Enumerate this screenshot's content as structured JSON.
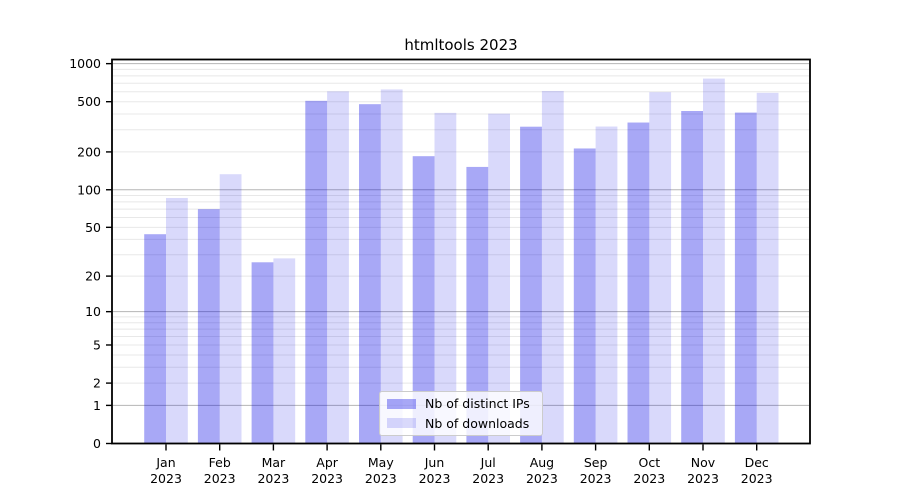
{
  "chart_data": {
    "type": "bar",
    "title": "htmltools 2023",
    "categories": [
      "Jan 2023",
      "Feb 2023",
      "Mar 2023",
      "Apr 2023",
      "May 2023",
      "Jun 2023",
      "Jul 2023",
      "Aug 2023",
      "Sep 2023",
      "Oct 2023",
      "Nov 2023",
      "Dec 2023"
    ],
    "series": [
      {
        "name": "Nb of distinct IPs",
        "color": "#0000e6",
        "fill_opacity": 0.34,
        "values": [
          44,
          70,
          26,
          508,
          478,
          185,
          152,
          317,
          213,
          342,
          422,
          410
        ]
      },
      {
        "name": "Nb of downloads",
        "color": "#0000e6",
        "fill_opacity": 0.15,
        "values": [
          86,
          133,
          28,
          604,
          625,
          408,
          402,
          608,
          318,
          595,
          762,
          588
        ]
      }
    ],
    "y_axis": {
      "scale": "log1p",
      "tick_values": [
        0,
        1,
        2,
        5,
        10,
        20,
        50,
        100,
        200,
        500,
        1000
      ],
      "tick_labels": [
        "0",
        "1",
        "2",
        "5",
        "10",
        "20",
        "50",
        "100",
        "200",
        "500",
        "1000"
      ],
      "major_gridlines": [
        1,
        10,
        100,
        1000
      ],
      "minor_gridlines": [
        2,
        3,
        4,
        5,
        6,
        7,
        8,
        9,
        20,
        30,
        40,
        50,
        60,
        70,
        80,
        90,
        200,
        300,
        400,
        500,
        600,
        700,
        800,
        900
      ],
      "ylim": [
        0,
        1080
      ]
    },
    "x_axis": {
      "tick_label_lines": 2
    },
    "legend": {
      "position": "lower center"
    },
    "colors": {
      "grid_major": "#b5b5b5",
      "grid_minor": "#e8e8e8",
      "axis_frame": "#000000",
      "background": "#ffffff",
      "bar_dark_effective": "#a9a9f8",
      "bar_light_effective": "#d9d9f6"
    }
  }
}
